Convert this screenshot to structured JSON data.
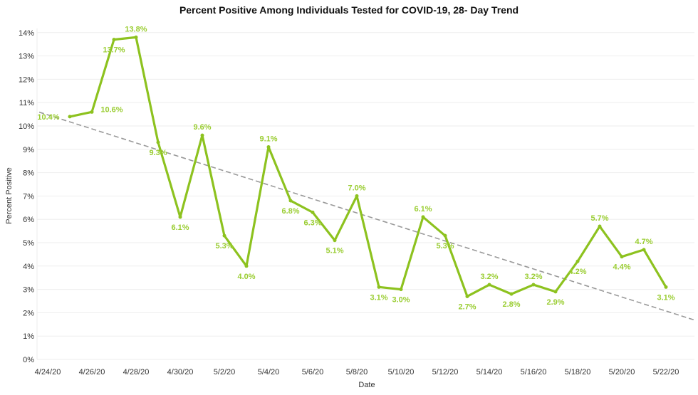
{
  "chart_data": {
    "type": "line",
    "title": "Percent Positive Among Individuals Tested for COVID-19, 28- Day Trend",
    "xlabel": "Date",
    "ylabel": "Percent Positive",
    "ylim": [
      0,
      14
    ],
    "y_ticks": [
      "0%",
      "1%",
      "2%",
      "3%",
      "4%",
      "5%",
      "6%",
      "7%",
      "8%",
      "9%",
      "10%",
      "11%",
      "12%",
      "13%",
      "14%"
    ],
    "x_ticks": [
      "4/24/20",
      "4/26/20",
      "4/28/20",
      "4/30/20",
      "5/2/20",
      "5/4/20",
      "5/6/20",
      "5/8/20",
      "5/10/20",
      "5/12/20",
      "5/14/20",
      "5/16/20",
      "5/18/20",
      "5/20/20",
      "5/22/20"
    ],
    "x": [
      "4/25/20",
      "4/26/20",
      "4/27/20",
      "4/28/20",
      "4/29/20",
      "4/30/20",
      "5/1/20",
      "5/2/20",
      "5/3/20",
      "5/4/20",
      "5/5/20",
      "5/6/20",
      "5/7/20",
      "5/8/20",
      "5/9/20",
      "5/10/20",
      "5/11/20",
      "5/12/20",
      "5/13/20",
      "5/14/20",
      "5/15/20",
      "5/16/20",
      "5/17/20",
      "5/18/20",
      "5/19/20",
      "5/20/20",
      "5/21/20",
      "5/22/20"
    ],
    "values": [
      10.4,
      10.6,
      13.7,
      13.8,
      9.3,
      6.1,
      9.6,
      5.3,
      4.0,
      9.1,
      6.8,
      6.3,
      5.1,
      7.0,
      3.1,
      3.0,
      6.1,
      5.3,
      2.7,
      3.2,
      2.8,
      3.2,
      2.9,
      4.2,
      5.7,
      4.4,
      4.7,
      3.1
    ],
    "data_labels": [
      "10.4%",
      "10.6%",
      "13.7%",
      "13.8%",
      "9.3%",
      "6.1%",
      "9.6%",
      "5.3%",
      "4.0%",
      "9.1%",
      "6.8%",
      "6.3%",
      "5.1%",
      "7.0%",
      "3.1%",
      "3.0%",
      "6.1%",
      "5.3%",
      "2.7%",
      "3.2%",
      "2.8%",
      "3.2%",
      "2.9%",
      "4.2%",
      "5.7%",
      "4.4%",
      "4.7%",
      "3.1%"
    ],
    "trendline": "linear",
    "grid": true,
    "colors": {
      "line": "#8dc21f",
      "labels": "#9acd32",
      "trendline": "#999999"
    }
  }
}
